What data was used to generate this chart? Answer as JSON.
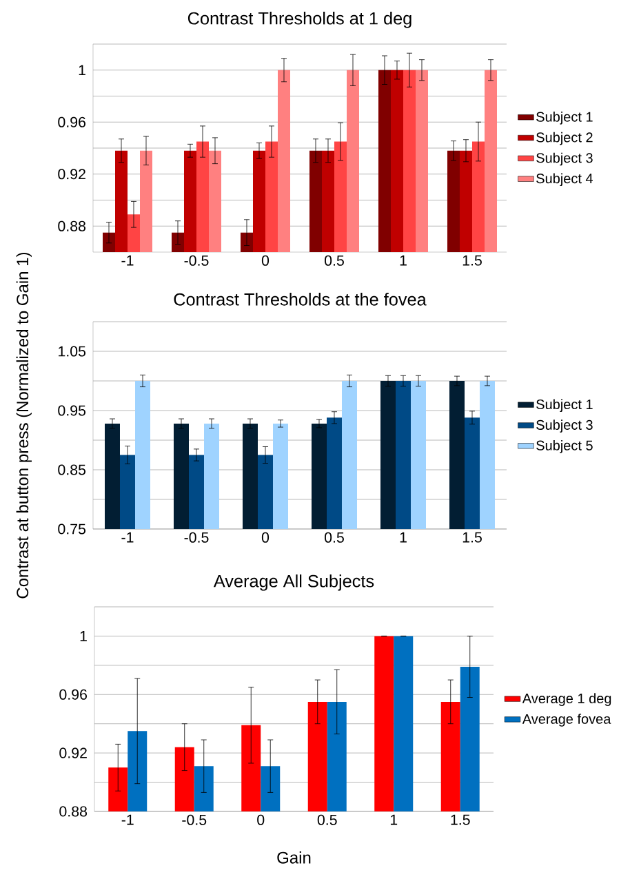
{
  "chart_data": [
    {
      "type": "bar",
      "title": "Contrast Thresholds at 1 deg",
      "categories": [
        "-1",
        "-0.5",
        "0",
        "0.5",
        "1",
        "1.5"
      ],
      "ylim": [
        0.86,
        1.02
      ],
      "yticks": [
        0.88,
        {
          "value": 0.9,
          "label": null
        },
        0.92,
        {
          "value": 0.94,
          "label": null
        },
        0.96,
        {
          "value": 0.98,
          "label": null
        },
        1,
        {
          "value": 1.02,
          "label": null
        }
      ],
      "grid": "y",
      "legend": "right",
      "series": [
        {
          "name": "Subject 1",
          "color": "#800000",
          "values": [
            0.875,
            0.875,
            0.875,
            0.938,
            1,
            0.938
          ],
          "errors": [
            0.008,
            0.009,
            0.01,
            0.009,
            0.011,
            0.0075
          ]
        },
        {
          "name": "Subject 2",
          "color": "#c00000",
          "values": [
            0.938,
            0.938,
            0.938,
            0.938,
            1,
            0.938
          ],
          "errors": [
            0.009,
            0.005,
            0.006,
            0.009,
            0.007,
            0.0085
          ]
        },
        {
          "name": "Subject 3",
          "color": "#ff4444",
          "values": [
            0.889,
            0.945,
            0.945,
            0.945,
            1,
            0.945
          ],
          "errors": [
            0.01,
            0.012,
            0.012,
            0.0145,
            0.013,
            0.015
          ]
        },
        {
          "name": "Subject 4",
          "color": "#ff8080",
          "values": [
            0.938,
            0.938,
            1,
            1,
            1,
            1
          ],
          "errors": [
            0.011,
            0.01,
            0.009,
            0.012,
            0.008,
            0.008
          ]
        }
      ]
    },
    {
      "type": "bar",
      "title": "Contrast Thresholds at the fovea",
      "ylabel": "Contrast at button press (Normalized to Gain 1)",
      "categories": [
        "-1",
        "-0.5",
        "0",
        "0.5",
        "1",
        "1.5"
      ],
      "ylim": [
        0.75,
        1.1
      ],
      "yticks": [
        0.75,
        {
          "value": 0.8,
          "label": null
        },
        0.85,
        {
          "value": 0.9,
          "label": null
        },
        0.95,
        {
          "value": 1.0,
          "label": null
        },
        1.05,
        {
          "value": 1.1,
          "label": null
        }
      ],
      "grid": "y",
      "legend": "right",
      "series": [
        {
          "name": "Subject 1",
          "color": "#021e33",
          "values": [
            0.928,
            0.928,
            0.928,
            0.928,
            1,
            1
          ],
          "errors": [
            0.008,
            0.008,
            0.008,
            0.007,
            0.009,
            0.008
          ]
        },
        {
          "name": "Subject 3",
          "color": "#004a86",
          "values": [
            0.875,
            0.875,
            0.875,
            0.938,
            1,
            0.938
          ],
          "errors": [
            0.015,
            0.01,
            0.014,
            0.01,
            0.009,
            0.011
          ]
        },
        {
          "name": "Subject 5",
          "color": "#9fd3ff",
          "values": [
            1,
            0.928,
            0.928,
            1,
            1,
            1
          ],
          "errors": [
            0.01,
            0.008,
            0.006,
            0.01,
            0.009,
            0.008
          ]
        }
      ]
    },
    {
      "type": "bar",
      "title": "Average All Subjects",
      "xlabel": "Gain",
      "categories": [
        "-1",
        "-0.5",
        "0",
        "0.5",
        "1",
        "1.5"
      ],
      "ylim": [
        0.88,
        1.02
      ],
      "yticks": [
        0.88,
        {
          "value": 0.9,
          "label": null
        },
        0.92,
        {
          "value": 0.94,
          "label": null
        },
        0.96,
        {
          "value": 0.98,
          "label": null
        },
        1,
        {
          "value": 1.02,
          "label": null
        }
      ],
      "grid": "y",
      "legend": "right",
      "series": [
        {
          "name": "Average 1 deg",
          "color": "#ff0000",
          "values": [
            0.91,
            0.924,
            0.939,
            0.955,
            1,
            0.955
          ],
          "errors": [
            0.016,
            0.016,
            0.026,
            0.015,
            0,
            0.015
          ]
        },
        {
          "name": "Average fovea",
          "color": "#0070c0",
          "values": [
            0.935,
            0.911,
            0.911,
            0.955,
            1,
            0.979
          ],
          "errors": [
            0.036,
            0.018,
            0.018,
            0.022,
            0,
            0.021
          ]
        }
      ]
    }
  ]
}
